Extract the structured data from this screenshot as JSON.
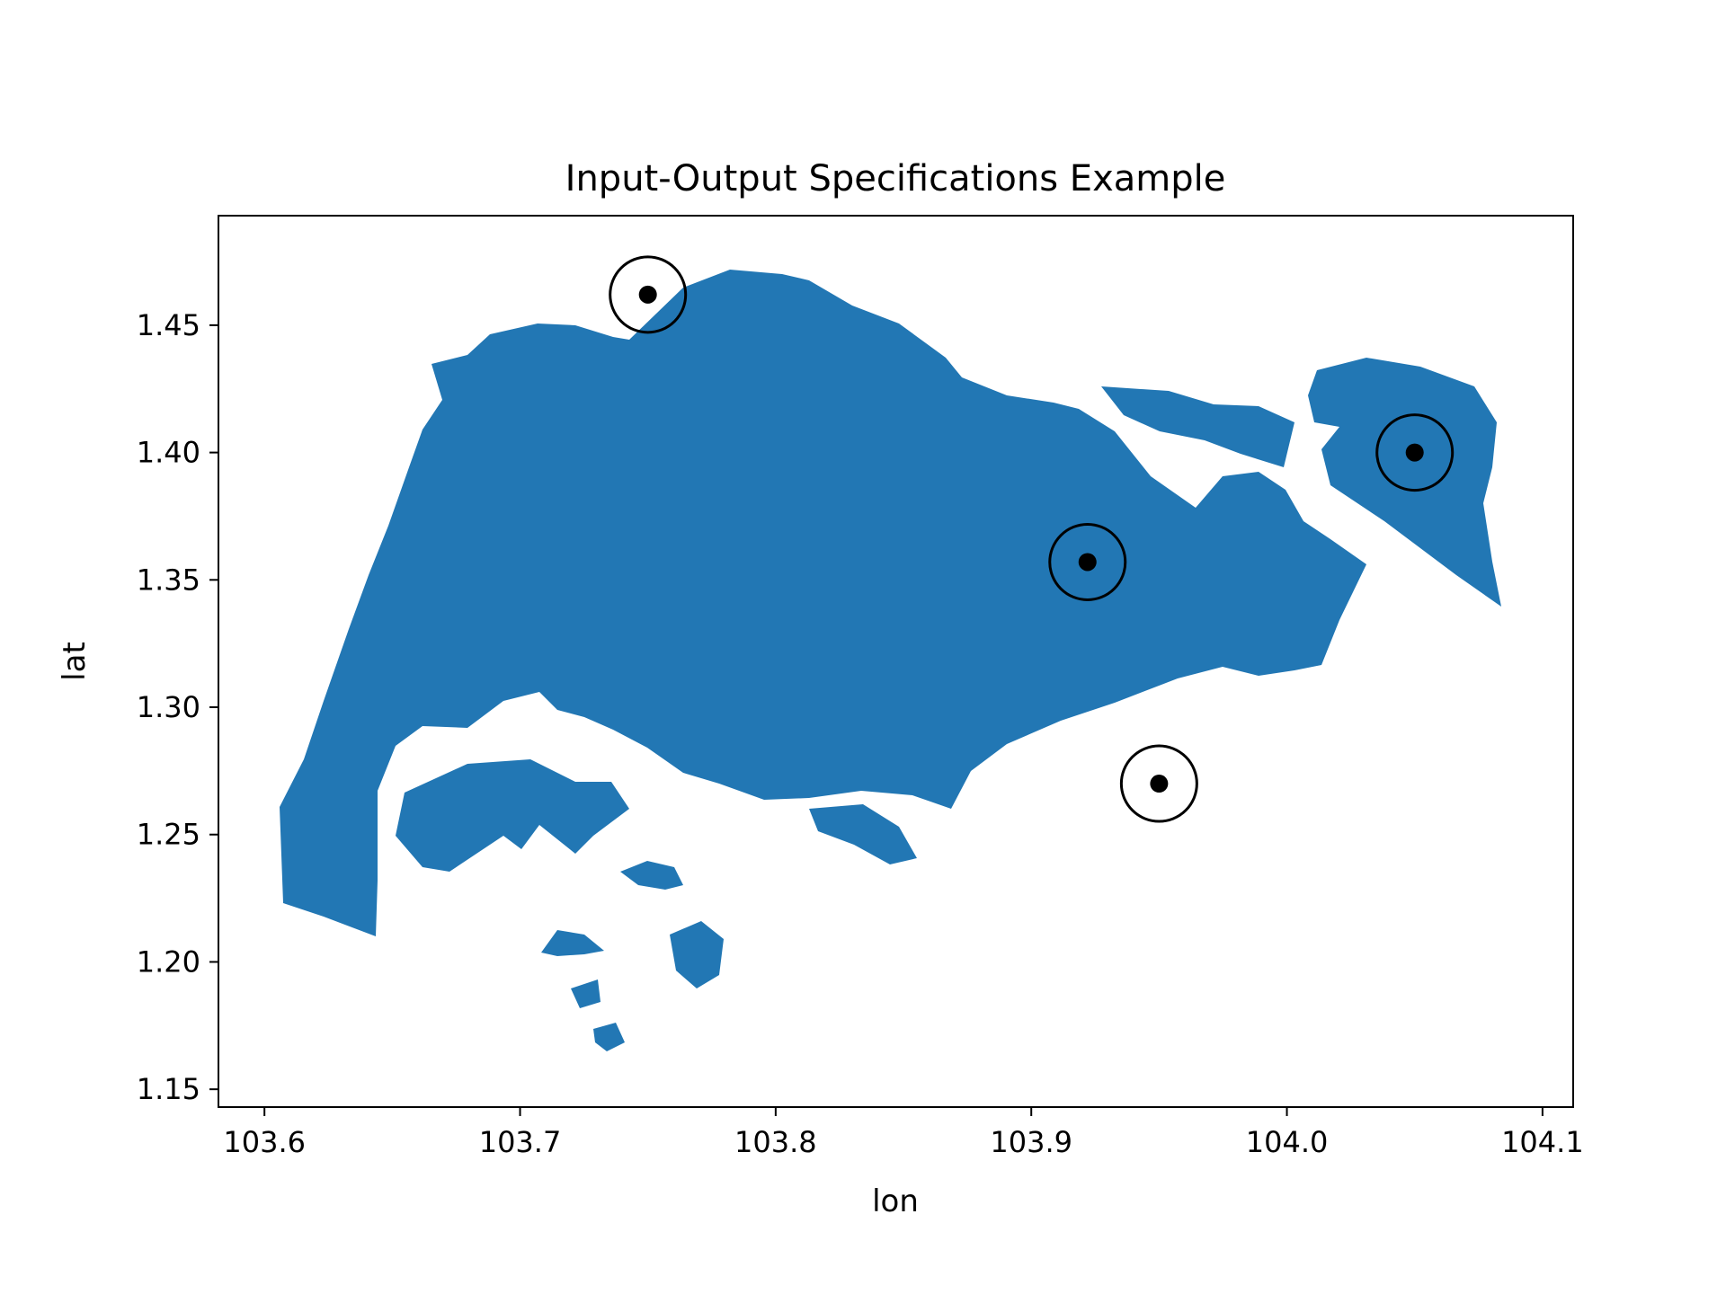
{
  "chart_data": {
    "type": "scatter",
    "title": "Input-Output Specifications Example",
    "xlabel": "lon",
    "ylabel": "lat",
    "xlim": [
      103.582,
      104.112
    ],
    "ylim": [
      1.143,
      1.493
    ],
    "xticks": [
      103.6,
      103.7,
      103.8,
      103.9,
      104.0,
      104.1
    ],
    "xtick_labels": [
      "103.6",
      "103.7",
      "103.8",
      "103.9",
      "104.0",
      "104.1"
    ],
    "yticks": [
      1.15,
      1.2,
      1.25,
      1.3,
      1.35,
      1.4,
      1.45
    ],
    "ytick_labels": [
      "1.15",
      "1.20",
      "1.25",
      "1.30",
      "1.35",
      "1.40",
      "1.45"
    ],
    "grid": false,
    "basemap": {
      "region": "Singapore",
      "fill_color": "#2277b4"
    },
    "points": [
      {
        "lon": 103.75,
        "lat": 1.462
      },
      {
        "lon": 103.922,
        "lat": 1.357
      },
      {
        "lon": 103.95,
        "lat": 1.27
      },
      {
        "lon": 104.05,
        "lat": 1.4
      }
    ],
    "marker_color": "#000000"
  }
}
